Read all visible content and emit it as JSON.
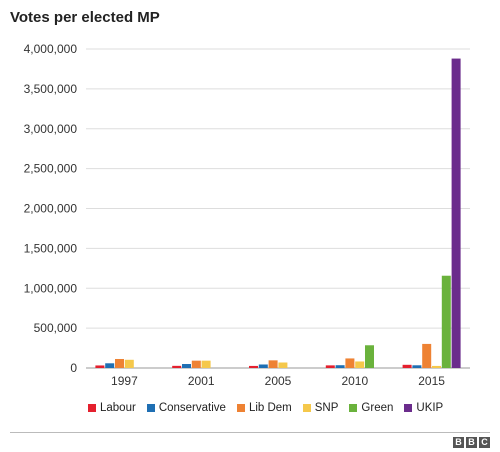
{
  "chart_data": {
    "type": "bar",
    "title": "Votes per elected MP",
    "categories": [
      "1997",
      "2001",
      "2005",
      "2010",
      "2015"
    ],
    "ylim": [
      0,
      4000000
    ],
    "yticks": [
      "0",
      "500,000",
      "1,000,000",
      "1,500,000",
      "2,000,000",
      "2,500,000",
      "3,000,000",
      "3,500,000",
      "4,000,000"
    ],
    "grid": "horizontal",
    "legend_position": "bottom",
    "series": [
      {
        "name": "Labour",
        "color": "#e4202e",
        "values": [
          32000,
          27000,
          26000,
          33000,
          40000
        ]
      },
      {
        "name": "Conservative",
        "color": "#1f6fb3",
        "values": [
          59000,
          50000,
          44000,
          35000,
          34000
        ]
      },
      {
        "name": "Lib Dem",
        "color": "#ee8233",
        "values": [
          113000,
          92000,
          96000,
          120000,
          302000
        ]
      },
      {
        "name": "SNP",
        "color": "#f5c84b",
        "values": [
          103000,
          92000,
          69000,
          82000,
          26000
        ]
      },
      {
        "name": "Green",
        "color": "#6ab23c",
        "values": [
          0,
          0,
          0,
          285000,
          1157000
        ]
      },
      {
        "name": "UKIP",
        "color": "#6b2c8c",
        "values": [
          0,
          0,
          0,
          0,
          3880000
        ]
      }
    ]
  },
  "branding": {
    "logo_letters": [
      "B",
      "B",
      "C"
    ]
  }
}
